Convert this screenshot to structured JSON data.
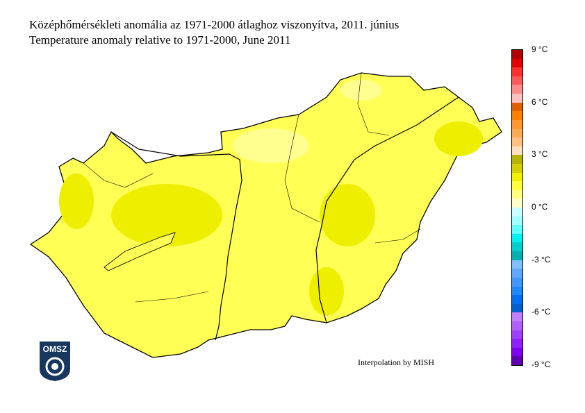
{
  "title_hu": "Középhőmérsékleti anomália az 1971-2000 átlaghoz viszonyítva, 2011. június",
  "title_en": "Temperature anomaly relative to 1971-2000, June 2011",
  "credit": "Interpolation by MISH",
  "logo_text": "OMSZ",
  "legend": {
    "min": -9,
    "max": 9,
    "step": 0.5,
    "unit": "°C",
    "tick_labels": [
      "9 °C",
      "6 °C",
      "3 °C",
      "0 °C",
      "-3 °C",
      "-6 °C",
      "-9 °C"
    ],
    "colors_top_to_bottom": [
      "#b00000",
      "#e00000",
      "#ff3030",
      "#ff5a5a",
      "#ff8c8c",
      "#ffc0c0",
      "#e06000",
      "#ff8000",
      "#ff9830",
      "#ffaa55",
      "#ffc080",
      "#ffe0c0",
      "#b4b400",
      "#d4d000",
      "#f0f000",
      "#ffff40",
      "#ffff80",
      "#ffffc8",
      "#c8ffff",
      "#a0ffff",
      "#60ffff",
      "#00f0f0",
      "#00d0d0",
      "#00b0b0",
      "#80c0ff",
      "#60a8ff",
      "#4098ff",
      "#2088ff",
      "#0070f0",
      "#0060d0",
      "#c080ff",
      "#b060ff",
      "#a040ff",
      "#9020ff",
      "#8000f0",
      "#6000b0"
    ]
  },
  "map": {
    "dominant_anomaly_range": "1.0 to 2.0 °C",
    "colors": {
      "main": "#ffff55",
      "warm": "#eeee00",
      "cool": "#ffff90",
      "border": "#000000"
    }
  }
}
